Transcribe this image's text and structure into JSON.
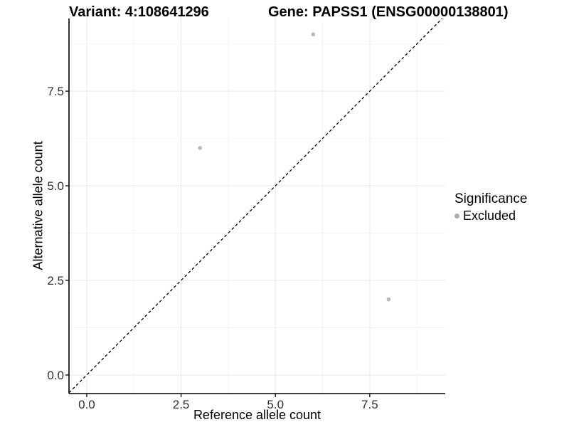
{
  "titles": {
    "variant": "Variant: 4:108641296",
    "gene": "Gene: PAPSS1 (ENSG00000138801)"
  },
  "legend": {
    "title": "Significance",
    "items": [
      {
        "label": "Excluded",
        "color": "#adadad"
      }
    ]
  },
  "chart_data": {
    "type": "scatter",
    "xlabel": "Reference allele count",
    "ylabel": "Alternative allele count",
    "x_ticks": [
      0.0,
      2.5,
      5.0,
      7.5
    ],
    "y_ticks": [
      0.0,
      2.5,
      5.0,
      7.5
    ],
    "x_minor_ticks": [
      1.25,
      3.75,
      6.25,
      8.75
    ],
    "y_minor_ticks": [
      1.25,
      3.75,
      6.25,
      8.75
    ],
    "xlim": [
      -0.47,
      9.5
    ],
    "ylim": [
      -0.49,
      9.42
    ],
    "grid": true,
    "legend_position": "right",
    "series": [
      {
        "name": "Excluded",
        "color": "#b9b9b9",
        "points": [
          {
            "x": 6,
            "y": 9
          },
          {
            "x": 3,
            "y": 6
          },
          {
            "x": 8,
            "y": 2
          }
        ]
      }
    ],
    "reference_line": {
      "type": "identity",
      "slope": 1,
      "intercept": 0,
      "style": "dashed",
      "color": "#000000"
    },
    "style": {
      "grid_major_color": "#e9e9e9",
      "grid_minor_color": "#f4f4f4",
      "axis_color": "#000000",
      "tick_label_color": "#303030"
    }
  }
}
